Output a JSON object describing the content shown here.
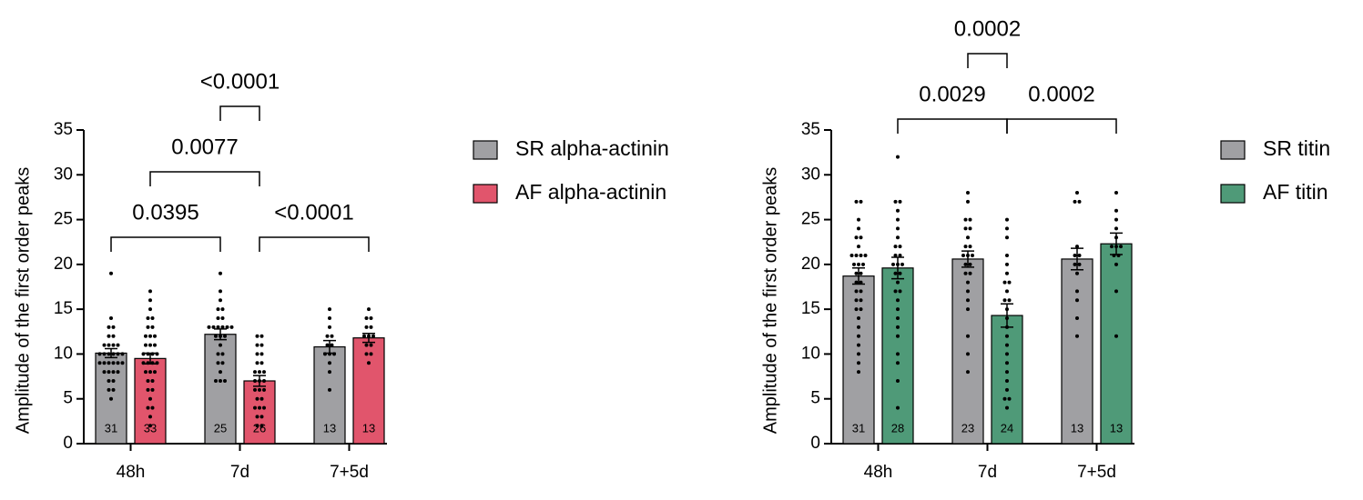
{
  "chart_data": [
    {
      "type": "bar",
      "y_label": "Amplitude of the first order peaks",
      "categories": [
        "48h",
        "7d",
        "7+5d"
      ],
      "ylim": [
        0,
        35
      ],
      "yticks": [
        0,
        5,
        10,
        15,
        20,
        25,
        30,
        35
      ],
      "series": [
        {
          "name": "SR alpha-actinin",
          "color": "#a0a0a3",
          "values": [
            10.1,
            12.2,
            10.8
          ],
          "errors": [
            0.5,
            0.6,
            0.7
          ],
          "n": [
            31,
            25,
            13
          ],
          "points": [
            [
              19,
              14,
              13,
              13,
              12,
              12,
              11,
              11,
              11,
              11,
              10,
              10,
              10,
              10,
              10,
              10,
              9,
              9,
              9,
              9,
              9,
              9,
              8,
              8,
              8,
              8,
              7,
              7,
              6,
              6,
              5
            ],
            [
              19,
              17,
              16,
              15,
              15,
              14,
              14,
              13,
              13,
              13,
              13,
              13,
              13,
              12,
              12,
              12,
              11,
              10,
              10,
              9,
              9,
              8,
              7,
              7,
              7
            ],
            [
              15,
              14,
              13,
              12,
              12,
              11,
              11,
              10,
              10,
              10,
              9,
              8,
              6
            ]
          ]
        },
        {
          "name": "AF alpha-actinin",
          "color": "#e1556c",
          "values": [
            9.5,
            7.0,
            11.8
          ],
          "errors": [
            0.6,
            0.6,
            0.5
          ],
          "n": [
            33,
            26,
            13
          ],
          "points": [
            [
              17,
              16,
              15,
              14,
              14,
              13,
              13,
              12,
              12,
              12,
              11,
              11,
              11,
              10,
              10,
              10,
              10,
              9,
              9,
              9,
              9,
              8,
              8,
              8,
              7,
              7,
              6,
              6,
              5,
              4,
              4,
              3,
              2
            ],
            [
              12,
              12,
              11,
              11,
              10,
              10,
              9,
              9,
              8,
              8,
              8,
              7,
              7,
              7,
              6,
              6,
              6,
              5,
              5,
              4,
              4,
              4,
              3,
              3,
              2,
              2
            ],
            [
              15,
              14,
              14,
              13,
              13,
              12,
              12,
              12,
              11,
              11,
              10,
              10,
              9
            ]
          ]
        }
      ],
      "annotations": [
        "0.0395",
        "0.0077",
        "<0.0001",
        "<0.0001"
      ]
    },
    {
      "type": "bar",
      "y_label": "Amplitude of the first order peaks",
      "categories": [
        "48h",
        "7d",
        "7+5d"
      ],
      "ylim": [
        0,
        35
      ],
      "yticks": [
        0,
        5,
        10,
        15,
        20,
        25,
        30,
        35
      ],
      "series": [
        {
          "name": "SR titin",
          "color": "#a0a0a3",
          "values": [
            18.7,
            20.6,
            20.6
          ],
          "errors": [
            0.9,
            0.9,
            1.2
          ],
          "n": [
            31,
            23,
            13
          ],
          "points": [
            [
              27,
              27,
              25,
              24,
              23,
              23,
              22,
              21,
              21,
              21,
              21,
              20,
              20,
              20,
              19,
              19,
              18,
              18,
              17,
              17,
              16,
              16,
              15,
              15,
              14,
              13,
              12,
              11,
              10,
              9,
              8
            ],
            [
              28,
              27,
              25,
              25,
              24,
              24,
              23,
              22,
              22,
              21,
              21,
              21,
              20,
              20,
              19,
              19,
              18,
              17,
              16,
              15,
              12,
              10,
              8
            ],
            [
              28,
              27,
              27,
              22,
              21,
              21,
              20,
              20,
              19,
              17,
              16,
              14,
              12
            ]
          ]
        },
        {
          "name": "AF titin",
          "color": "#4f9a78",
          "values": [
            19.6,
            14.3,
            22.3
          ],
          "errors": [
            1.2,
            1.3,
            1.2
          ],
          "n": [
            28,
            24,
            13
          ],
          "points": [
            [
              32,
              27,
              27,
              26,
              25,
              24,
              23,
              22,
              22,
              21,
              21,
              20,
              20,
              20,
              19,
              19,
              18,
              17,
              17,
              16,
              15,
              14,
              13,
              12,
              10,
              9,
              7,
              4
            ],
            [
              25,
              24,
              23,
              21,
              20,
              19,
              18,
              18,
              17,
              16,
              16,
              15,
              14,
              13,
              12,
              11,
              10,
              9,
              8,
              7,
              6,
              5,
              5,
              4
            ],
            [
              28,
              26,
              25,
              24,
              23,
              22,
              22,
              22,
              21,
              21,
              20,
              17,
              12
            ]
          ]
        }
      ],
      "annotations": [
        "0.0029",
        "0.0002",
        "0.0002"
      ]
    }
  ]
}
